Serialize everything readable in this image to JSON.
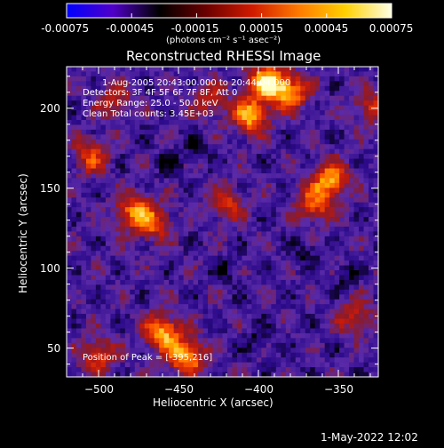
{
  "colors": {
    "background": "#000000",
    "foreground": "#ffffff",
    "colormap": [
      "#000000",
      "#2b0a8a",
      "#5a2aa8",
      "#8a1a2a",
      "#c81a0a",
      "#ff5a00",
      "#ffb400",
      "#ffffc8"
    ],
    "colorbar": [
      "#0000ff",
      "#5000c8",
      "#000000",
      "#6a0000",
      "#d01a00",
      "#ff7a00",
      "#ffd000",
      "#ffffe6"
    ]
  },
  "chart_data": {
    "type": "heatmap",
    "title": "Reconstructed RHESSI Image",
    "xlabel": "Heliocentric X (arcsec)",
    "ylabel": "Heliocentric Y (arcsec)",
    "xlim": [
      -520,
      -325
    ],
    "ylim": [
      32,
      226
    ],
    "xticks": [
      -500,
      -450,
      -400,
      -350
    ],
    "yticks": [
      50,
      100,
      150,
      200
    ],
    "info_lines": [
      "1-Aug-2005 20:43:00.000 to 20:44:04.000",
      "Detectors: 3F 4F 5F 6F 7F 8F, Att 0",
      "Energy Range: 25.0 - 50.0 keV",
      "Clean    Total counts: 3.45E+03"
    ],
    "peak_label": "Position of Peak = [-395,216]",
    "peak": [
      -395,
      216
    ],
    "colorbar": {
      "range": [
        -0.00075,
        0.00075
      ],
      "ticks": [
        "-0.00075",
        "-0.00045",
        "-0.00015",
        "0.00015",
        "0.00045",
        "0.00075"
      ],
      "units": "(photons cm⁻² s⁻¹ asec⁻²)"
    },
    "hot_regions": [
      {
        "x": -395,
        "y": 216,
        "strength": 1.0
      },
      {
        "x": -405,
        "y": 195,
        "strength": 0.85
      },
      {
        "x": -380,
        "y": 210,
        "strength": 0.8
      },
      {
        "x": -355,
        "y": 155,
        "strength": 0.8
      },
      {
        "x": -365,
        "y": 140,
        "strength": 0.6
      },
      {
        "x": -478,
        "y": 135,
        "strength": 0.7
      },
      {
        "x": -465,
        "y": 128,
        "strength": 0.55
      },
      {
        "x": -505,
        "y": 170,
        "strength": 0.55
      },
      {
        "x": -460,
        "y": 60,
        "strength": 0.85
      },
      {
        "x": -445,
        "y": 45,
        "strength": 0.9
      },
      {
        "x": -500,
        "y": 45,
        "strength": 0.55
      },
      {
        "x": -420,
        "y": 140,
        "strength": 0.5
      },
      {
        "x": -340,
        "y": 70,
        "strength": 0.45
      },
      {
        "x": -330,
        "y": 200,
        "strength": 0.45
      },
      {
        "x": -490,
        "y": 205,
        "strength": 0.45
      },
      {
        "x": -430,
        "y": 205,
        "strength": 0.45
      }
    ],
    "cold_regions": [
      {
        "x": -440,
        "y": 175
      },
      {
        "x": -420,
        "y": 100
      },
      {
        "x": -370,
        "y": 110
      },
      {
        "x": -400,
        "y": 55
      },
      {
        "x": -345,
        "y": 95
      },
      {
        "x": -455,
        "y": 165
      }
    ]
  },
  "footer": {
    "timestamp": "1-May-2022 12:02"
  }
}
